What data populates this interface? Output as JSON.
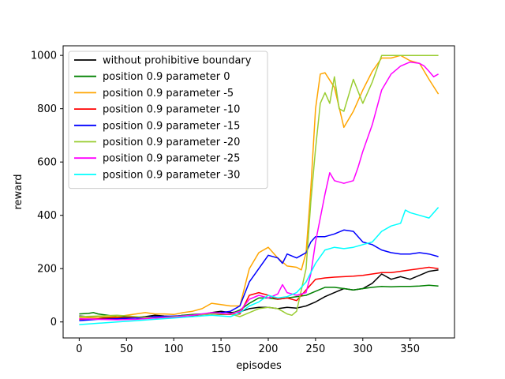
{
  "chart_data": {
    "type": "line",
    "title": "",
    "xlabel": "episodes",
    "ylabel": "reward",
    "xlim": [
      -17,
      397
    ],
    "ylim": [
      -60,
      1036
    ],
    "xticks": [
      0,
      50,
      100,
      150,
      200,
      250,
      300,
      350
    ],
    "yticks": [
      0,
      200,
      400,
      600,
      800,
      1000
    ],
    "grid": false,
    "legend_position": "top-left",
    "series": [
      {
        "name": "without prohibitive boundary",
        "color": "#000000",
        "points": [
          [
            0,
            22
          ],
          [
            10,
            20
          ],
          [
            20,
            18
          ],
          [
            30,
            15
          ],
          [
            40,
            18
          ],
          [
            50,
            20
          ],
          [
            60,
            18
          ],
          [
            70,
            20
          ],
          [
            80,
            25
          ],
          [
            90,
            22
          ],
          [
            100,
            20
          ],
          [
            110,
            25
          ],
          [
            120,
            22
          ],
          [
            130,
            28
          ],
          [
            140,
            35
          ],
          [
            150,
            40
          ],
          [
            160,
            35
          ],
          [
            170,
            38
          ],
          [
            180,
            50
          ],
          [
            190,
            55
          ],
          [
            200,
            55
          ],
          [
            210,
            50
          ],
          [
            220,
            55
          ],
          [
            230,
            52
          ],
          [
            240,
            60
          ],
          [
            250,
            75
          ],
          [
            260,
            95
          ],
          [
            270,
            110
          ],
          [
            280,
            125
          ],
          [
            290,
            120
          ],
          [
            300,
            125
          ],
          [
            310,
            145
          ],
          [
            320,
            180
          ],
          [
            330,
            160
          ],
          [
            340,
            170
          ],
          [
            350,
            160
          ],
          [
            360,
            175
          ],
          [
            370,
            190
          ],
          [
            380,
            195
          ]
        ]
      },
      {
        "name": "position 0.9 parameter 0",
        "color": "#008000",
        "points": [
          [
            0,
            30
          ],
          [
            10,
            32
          ],
          [
            15,
            35
          ],
          [
            20,
            30
          ],
          [
            30,
            25
          ],
          [
            40,
            20
          ],
          [
            50,
            18
          ],
          [
            60,
            15
          ],
          [
            70,
            15
          ],
          [
            80,
            20
          ],
          [
            90,
            18
          ],
          [
            100,
            20
          ],
          [
            110,
            25
          ],
          [
            120,
            28
          ],
          [
            130,
            30
          ],
          [
            140,
            30
          ],
          [
            150,
            28
          ],
          [
            160,
            30
          ],
          [
            170,
            45
          ],
          [
            180,
            70
          ],
          [
            190,
            90
          ],
          [
            200,
            90
          ],
          [
            210,
            85
          ],
          [
            220,
            90
          ],
          [
            230,
            95
          ],
          [
            240,
            100
          ],
          [
            250,
            115
          ],
          [
            260,
            130
          ],
          [
            270,
            130
          ],
          [
            280,
            125
          ],
          [
            290,
            120
          ],
          [
            300,
            125
          ],
          [
            310,
            130
          ],
          [
            320,
            133
          ],
          [
            330,
            132
          ],
          [
            340,
            133
          ],
          [
            350,
            133
          ],
          [
            360,
            135
          ],
          [
            370,
            138
          ],
          [
            380,
            135
          ]
        ]
      },
      {
        "name": "position 0.9 parameter -5",
        "color": "#ffa500",
        "points": [
          [
            0,
            15
          ],
          [
            20,
            18
          ],
          [
            40,
            20
          ],
          [
            60,
            30
          ],
          [
            70,
            35
          ],
          [
            80,
            30
          ],
          [
            90,
            30
          ],
          [
            100,
            28
          ],
          [
            110,
            35
          ],
          [
            120,
            40
          ],
          [
            130,
            50
          ],
          [
            140,
            70
          ],
          [
            150,
            65
          ],
          [
            160,
            60
          ],
          [
            170,
            60
          ],
          [
            180,
            200
          ],
          [
            190,
            260
          ],
          [
            200,
            280
          ],
          [
            210,
            240
          ],
          [
            220,
            210
          ],
          [
            230,
            205
          ],
          [
            235,
            195
          ],
          [
            240,
            260
          ],
          [
            245,
            500
          ],
          [
            250,
            800
          ],
          [
            255,
            930
          ],
          [
            260,
            935
          ],
          [
            270,
            880
          ],
          [
            280,
            730
          ],
          [
            290,
            790
          ],
          [
            300,
            870
          ],
          [
            310,
            940
          ],
          [
            320,
            990
          ],
          [
            330,
            990
          ],
          [
            340,
            1000
          ],
          [
            350,
            980
          ],
          [
            360,
            970
          ],
          [
            370,
            910
          ],
          [
            380,
            855
          ]
        ]
      },
      {
        "name": "position 0.9 parameter -10",
        "color": "#ff0000",
        "points": [
          [
            0,
            10
          ],
          [
            20,
            12
          ],
          [
            40,
            15
          ],
          [
            60,
            18
          ],
          [
            80,
            15
          ],
          [
            100,
            20
          ],
          [
            120,
            25
          ],
          [
            140,
            30
          ],
          [
            160,
            28
          ],
          [
            170,
            30
          ],
          [
            180,
            100
          ],
          [
            190,
            110
          ],
          [
            200,
            100
          ],
          [
            210,
            85
          ],
          [
            220,
            90
          ],
          [
            230,
            80
          ],
          [
            240,
            120
          ],
          [
            250,
            160
          ],
          [
            260,
            165
          ],
          [
            270,
            168
          ],
          [
            280,
            170
          ],
          [
            290,
            172
          ],
          [
            300,
            175
          ],
          [
            310,
            180
          ],
          [
            320,
            185
          ],
          [
            330,
            185
          ],
          [
            340,
            190
          ],
          [
            350,
            195
          ],
          [
            360,
            200
          ],
          [
            370,
            205
          ],
          [
            380,
            200
          ]
        ]
      },
      {
        "name": "position 0.9 parameter -15",
        "color": "#0000ff",
        "points": [
          [
            0,
            5
          ],
          [
            20,
            10
          ],
          [
            40,
            12
          ],
          [
            60,
            15
          ],
          [
            80,
            20
          ],
          [
            100,
            22
          ],
          [
            120,
            25
          ],
          [
            140,
            30
          ],
          [
            150,
            35
          ],
          [
            160,
            40
          ],
          [
            170,
            60
          ],
          [
            180,
            150
          ],
          [
            190,
            200
          ],
          [
            200,
            250
          ],
          [
            210,
            240
          ],
          [
            215,
            220
          ],
          [
            220,
            255
          ],
          [
            230,
            240
          ],
          [
            240,
            260
          ],
          [
            245,
            300
          ],
          [
            250,
            320
          ],
          [
            260,
            320
          ],
          [
            270,
            330
          ],
          [
            280,
            345
          ],
          [
            290,
            340
          ],
          [
            300,
            300
          ],
          [
            310,
            290
          ],
          [
            320,
            270
          ],
          [
            330,
            260
          ],
          [
            340,
            255
          ],
          [
            350,
            255
          ],
          [
            360,
            260
          ],
          [
            370,
            255
          ],
          [
            380,
            245
          ]
        ]
      },
      {
        "name": "position 0.9 parameter -20",
        "color": "#9acd32",
        "points": [
          [
            0,
            20
          ],
          [
            20,
            22
          ],
          [
            40,
            25
          ],
          [
            60,
            20
          ],
          [
            80,
            15
          ],
          [
            100,
            20
          ],
          [
            120,
            25
          ],
          [
            140,
            30
          ],
          [
            160,
            30
          ],
          [
            170,
            20
          ],
          [
            180,
            35
          ],
          [
            190,
            50
          ],
          [
            200,
            55
          ],
          [
            210,
            50
          ],
          [
            215,
            40
          ],
          [
            220,
            30
          ],
          [
            225,
            25
          ],
          [
            230,
            40
          ],
          [
            240,
            200
          ],
          [
            245,
            450
          ],
          [
            250,
            650
          ],
          [
            255,
            820
          ],
          [
            260,
            860
          ],
          [
            265,
            820
          ],
          [
            270,
            920
          ],
          [
            275,
            800
          ],
          [
            280,
            790
          ],
          [
            285,
            850
          ],
          [
            290,
            910
          ],
          [
            300,
            820
          ],
          [
            310,
            900
          ],
          [
            320,
            1000
          ],
          [
            340,
            1000
          ],
          [
            360,
            1000
          ],
          [
            380,
            1000
          ]
        ]
      },
      {
        "name": "position 0.9 parameter -25",
        "color": "#ff00ff",
        "points": [
          [
            0,
            12
          ],
          [
            20,
            10
          ],
          [
            40,
            8
          ],
          [
            60,
            10
          ],
          [
            80,
            15
          ],
          [
            100,
            18
          ],
          [
            120,
            25
          ],
          [
            140,
            35
          ],
          [
            160,
            30
          ],
          [
            170,
            40
          ],
          [
            180,
            85
          ],
          [
            190,
            100
          ],
          [
            200,
            90
          ],
          [
            210,
            105
          ],
          [
            215,
            140
          ],
          [
            220,
            110
          ],
          [
            230,
            100
          ],
          [
            240,
            110
          ],
          [
            245,
            180
          ],
          [
            250,
            300
          ],
          [
            255,
            390
          ],
          [
            260,
            480
          ],
          [
            265,
            560
          ],
          [
            270,
            530
          ],
          [
            280,
            520
          ],
          [
            290,
            530
          ],
          [
            295,
            580
          ],
          [
            300,
            640
          ],
          [
            310,
            740
          ],
          [
            320,
            870
          ],
          [
            330,
            930
          ],
          [
            340,
            960
          ],
          [
            350,
            975
          ],
          [
            360,
            970
          ],
          [
            365,
            960
          ],
          [
            370,
            940
          ],
          [
            375,
            920
          ],
          [
            380,
            930
          ]
        ]
      },
      {
        "name": "position 0.9 parameter -30",
        "color": "#00ffff",
        "points": [
          [
            0,
            -10
          ],
          [
            20,
            -5
          ],
          [
            40,
            0
          ],
          [
            60,
            5
          ],
          [
            80,
            10
          ],
          [
            100,
            15
          ],
          [
            120,
            20
          ],
          [
            140,
            25
          ],
          [
            160,
            20
          ],
          [
            170,
            35
          ],
          [
            180,
            60
          ],
          [
            190,
            75
          ],
          [
            200,
            100
          ],
          [
            210,
            90
          ],
          [
            220,
            95
          ],
          [
            230,
            110
          ],
          [
            240,
            150
          ],
          [
            250,
            220
          ],
          [
            260,
            270
          ],
          [
            270,
            280
          ],
          [
            280,
            275
          ],
          [
            290,
            280
          ],
          [
            300,
            290
          ],
          [
            310,
            300
          ],
          [
            320,
            340
          ],
          [
            330,
            360
          ],
          [
            340,
            370
          ],
          [
            345,
            420
          ],
          [
            350,
            410
          ],
          [
            360,
            400
          ],
          [
            370,
            390
          ],
          [
            380,
            430
          ]
        ]
      }
    ]
  }
}
